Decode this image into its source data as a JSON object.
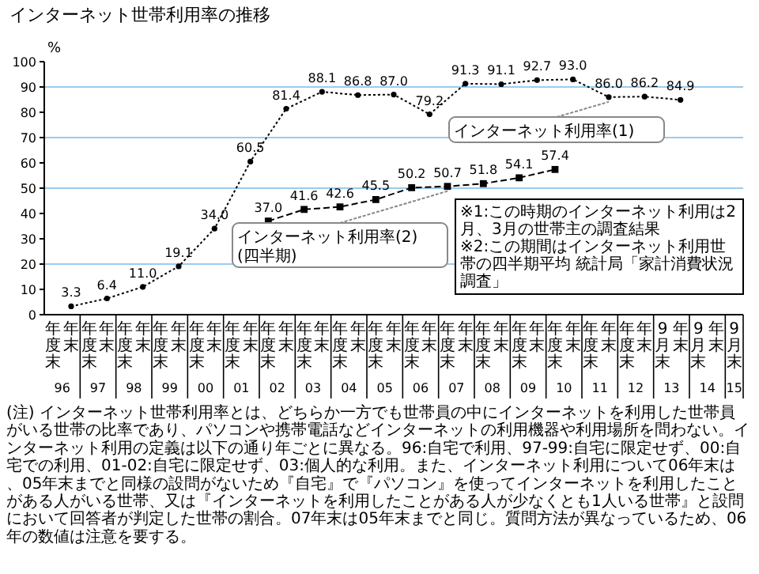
{
  "chart_data": {
    "type": "line",
    "title": "インターネット世帯利用率の推移",
    "ylabel": "%",
    "categories": [
      "年度末",
      "年末",
      "年度末",
      "年末",
      "年度末",
      "年末",
      "年度末",
      "年末",
      "年度末",
      "年末",
      "年度末",
      "年末",
      "年度末",
      "年末",
      "年度末",
      "年末",
      "年度末",
      "年末",
      "年度末",
      "年末",
      "年度末",
      "年末",
      "年度末",
      "年末",
      "年度末",
      "年末",
      "年度末",
      "年末",
      "年度末",
      "年末",
      "年度末",
      "年末",
      "年度末",
      "年末",
      "9月末",
      "年末",
      "9月末",
      "年末",
      "9月末"
    ],
    "series": [
      {
        "name": "インターネット利用率(1)",
        "color": "#000000",
        "marker": "circle",
        "line_style": "dotted",
        "values": [
          null,
          3.3,
          null,
          6.4,
          null,
          11.0,
          null,
          19.1,
          null,
          34.0,
          null,
          60.5,
          null,
          81.4,
          null,
          88.1,
          null,
          86.8,
          null,
          87.0,
          null,
          79.2,
          null,
          91.3,
          null,
          91.1,
          null,
          92.7,
          null,
          93.0,
          null,
          86.0,
          null,
          86.2,
          null,
          84.9,
          null,
          null,
          null
        ],
        "value_labels": [
          null,
          "3.3",
          null,
          "6.4",
          null,
          "11.0",
          null,
          "19.1",
          null,
          "34.0",
          null,
          "60.5",
          null,
          "81.4",
          null,
          "88.1",
          null,
          "86.8",
          null,
          "87.0",
          null,
          "79.2",
          null,
          "91.3",
          null,
          "91.1",
          null,
          "92.7",
          null,
          "93.0",
          null,
          "86.0",
          null,
          "86.2",
          null,
          "84.9",
          null,
          null,
          null
        ]
      },
      {
        "name": "インターネット利用率(2)\n(四半期)",
        "color": "#000000",
        "marker": "square",
        "line_style": "dashed",
        "values": [
          null,
          null,
          null,
          null,
          null,
          null,
          null,
          null,
          null,
          null,
          null,
          null,
          37.0,
          null,
          41.6,
          null,
          42.6,
          null,
          45.5,
          null,
          50.2,
          null,
          50.7,
          null,
          51.8,
          null,
          54.1,
          null,
          57.4,
          null,
          null,
          null,
          null,
          null,
          null,
          null,
          null,
          null,
          null
        ],
        "value_labels": [
          null,
          null,
          null,
          null,
          null,
          null,
          null,
          null,
          null,
          null,
          null,
          null,
          "37.0",
          null,
          "41.6",
          null,
          "42.6",
          null,
          "45.5",
          null,
          "50.2",
          null,
          "50.7",
          null,
          "51.8",
          null,
          "54.1",
          null,
          "57.4",
          null,
          null,
          null,
          null,
          null,
          null,
          null,
          null,
          null,
          null
        ]
      }
    ],
    "ylim": [
      0,
      100
    ],
    "yticks": [
      0,
      10,
      20,
      30,
      40,
      50,
      60,
      70,
      80,
      90,
      100
    ],
    "ref_lines": [
      {
        "axis": "y",
        "value": 20,
        "color": "#99ccee"
      },
      {
        "axis": "y",
        "value": 50,
        "color": "#99ccee"
      },
      {
        "axis": "y",
        "value": 70,
        "color": "#99ccee"
      },
      {
        "axis": "y",
        "value": 90,
        "color": "#99ccee"
      }
    ],
    "annotations": [
      "96",
      "97",
      "98",
      "99",
      "00",
      "01",
      "02",
      "03",
      "04",
      "05",
      "06",
      "07",
      "08",
      "09",
      "10",
      "11",
      "12",
      "13",
      "14",
      "15",
      "※1:この時期のインターネット利用は2月、3月の世帯主の調査結果",
      "※2:この期間はインターネット利用世帯の四半期平均 統計局「家計消費状況調査」",
      "(注) インターネット世帯利用率とは、どちらか一方でも世帯員の中にインターネットを利用した世帯員がいる世帯の比率であり、パソコンや携帯電話などインターネットの利用機器や利用場所を問わない。インターネット利用の定義は以下の通り年ごとに異なる。96:自宅で利用、97-99:自宅に限定せず、00:自宅での利用、01-02:自宅に限定せず、03:個人的な利用。また、インターネット利用について06年末は、05年末までと同様の設問がないため『自宅』で『パソコン』を使ってインターネットを利用したことがある人がいる世帯、又は『インターネットを利用したことがある人が少なくとも1人いる世帯』と設問において回答者が判定した世帯の割合。07年末は05年末までと同じ。質問方法が異なっているため、06年の数値は注意を要する。"
    ]
  }
}
